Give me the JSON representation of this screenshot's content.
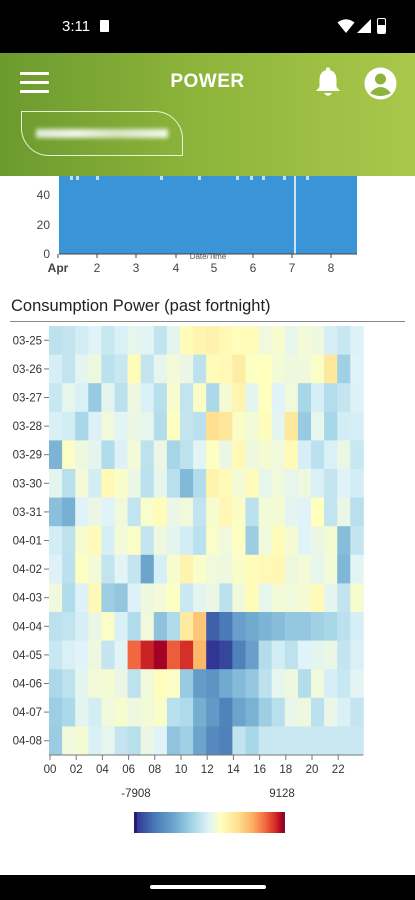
{
  "status": {
    "time": "3:11"
  },
  "header": {
    "title": "POWER"
  },
  "colors": {
    "accent_green": "#8cb33a",
    "bar_blue": "#3a95d8"
  },
  "icons": [
    "menu-icon",
    "bell-icon",
    "account-icon",
    "wifi-icon",
    "signal-icon",
    "battery-icon"
  ],
  "chart_data": [
    {
      "type": "bar",
      "y_ticks": [
        "0",
        "20",
        "40"
      ],
      "x_ticks": [
        "Apr",
        "2",
        "3",
        "4",
        "5",
        "6",
        "7",
        "8"
      ],
      "xlabel": "Date/Time",
      "bar_color": "#3a95d8",
      "note": "top of chart scrolled out of view; only lower part visible"
    },
    {
      "type": "heatmap",
      "title": "Consumption Power (past fortnight)",
      "rows": [
        "03-25",
        "03-26",
        "03-27",
        "03-28",
        "03-29",
        "03-30",
        "03-31",
        "04-01",
        "04-02",
        "04-03",
        "04-04",
        "04-05",
        "04-06",
        "04-07",
        "04-08"
      ],
      "x_ticks": [
        "00",
        "02",
        "04",
        "06",
        "08",
        "10",
        "12",
        "14",
        "16",
        "18",
        "20",
        "22"
      ],
      "colorbar": {
        "min": -7908,
        "max": 9128,
        "min_label": "-7908",
        "max_label": "9128"
      },
      "values": [
        [
          -500,
          -300,
          200,
          600,
          -200,
          400,
          900,
          700,
          -400,
          800,
          2200,
          2600,
          2800,
          2400,
          2100,
          2200,
          1300,
          1600,
          900,
          1400,
          1200,
          300,
          -200,
          500
        ],
        [
          300,
          -400,
          800,
          1200,
          -600,
          -200,
          2200,
          -300,
          900,
          1400,
          1100,
          -500,
          2200,
          2400,
          3100,
          1900,
          2000,
          1400,
          1200,
          1300,
          1800,
          3500,
          -1500,
          600
        ],
        [
          -200,
          900,
          400,
          -1800,
          800,
          -600,
          1200,
          400,
          -700,
          1600,
          -400,
          1800,
          -1100,
          1500,
          2600,
          800,
          2000,
          600,
          1300,
          -1200,
          300,
          -800,
          -300,
          500
        ],
        [
          400,
          200,
          -1200,
          500,
          1300,
          700,
          1100,
          900,
          -800,
          1900,
          -300,
          -600,
          4000,
          3600,
          1800,
          1400,
          2100,
          800,
          3500,
          -1800,
          900,
          -1200,
          200,
          300
        ],
        [
          -2800,
          1800,
          1200,
          800,
          -900,
          500,
          1400,
          -500,
          1100,
          -1300,
          -500,
          700,
          1900,
          1100,
          2400,
          1200,
          1500,
          1300,
          2300,
          300,
          -600,
          400,
          1100,
          -200
        ],
        [
          800,
          -700,
          1400,
          200,
          2400,
          1700,
          1100,
          -600,
          900,
          -700,
          -2600,
          -800,
          2700,
          2300,
          1400,
          2200,
          900,
          1300,
          900,
          1200,
          400,
          -300,
          600,
          200
        ],
        [
          -2300,
          -3000,
          600,
          1100,
          600,
          1300,
          -400,
          1700,
          2200,
          1000,
          1300,
          -400,
          1600,
          2500,
          1800,
          -600,
          1400,
          1500,
          800,
          600,
          2000,
          -400,
          1000,
          -700
        ],
        [
          200,
          -500,
          1600,
          2300,
          300,
          1400,
          1800,
          -300,
          1200,
          800,
          200,
          -600,
          1700,
          1300,
          1900,
          -1700,
          1300,
          2200,
          1500,
          600,
          1100,
          1500,
          -2400,
          -300
        ],
        [
          500,
          -600,
          1900,
          1400,
          -400,
          700,
          -300,
          -3600,
          300,
          1600,
          2700,
          1700,
          1300,
          1200,
          1700,
          2200,
          2400,
          2500,
          1200,
          1400,
          900,
          1400,
          -2700,
          700
        ],
        [
          1300,
          -900,
          500,
          2400,
          -1600,
          -2000,
          500,
          1200,
          1400,
          1900,
          -100,
          800,
          1100,
          -600,
          1300,
          2200,
          900,
          1400,
          1300,
          1500,
          2300,
          800,
          -400,
          1600
        ],
        [
          -600,
          -400,
          300,
          1100,
          1800,
          400,
          -900,
          1300,
          -2200,
          -1000,
          3300,
          4900,
          -6500,
          -5600,
          -3800,
          -3300,
          -2800,
          -2400,
          -1900,
          -1900,
          -1500,
          -1200,
          -600,
          300
        ],
        [
          -200,
          400,
          600,
          1200,
          -300,
          700,
          7200,
          8500,
          9128,
          7400,
          8300,
          5400,
          -7908,
          -7400,
          -5300,
          -3800,
          -800,
          200,
          -500,
          600,
          800,
          1100,
          -300,
          400
        ],
        [
          -1100,
          -500,
          800,
          1400,
          1500,
          1100,
          -500,
          1300,
          2100,
          1800,
          -1800,
          -4000,
          -4400,
          -3300,
          -2500,
          -1900,
          -500,
          900,
          1200,
          -800,
          1300,
          300,
          -200,
          700
        ],
        [
          -1600,
          -1100,
          800,
          200,
          1300,
          1600,
          1200,
          1400,
          1700,
          -700,
          -1000,
          -3100,
          -4100,
          -5200,
          -3600,
          -2900,
          -1600,
          -700,
          1000,
          1200,
          -600,
          1000,
          400,
          -300
        ],
        [
          -1700,
          1300,
          1500,
          400,
          900,
          -300,
          -700,
          1100,
          600,
          -2100,
          -1500,
          -3600,
          -4900,
          -5300,
          -400,
          -1200,
          -200,
          -100,
          -100,
          -100,
          -100,
          -100,
          -100,
          -100
        ]
      ]
    }
  ]
}
